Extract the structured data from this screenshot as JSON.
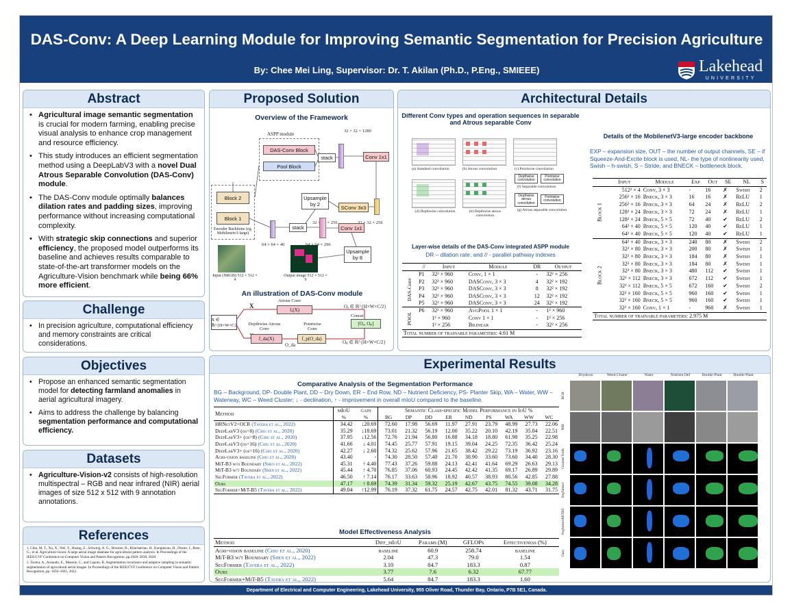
{
  "header": {
    "title": "DAS-Conv: A Deep Learning Module for Improving Semantic Segmentation for Precision Agriculture",
    "authors": "By: Chee Mei Ling, Supervisor: Dr. T. Akilan (Ph.D., P.Eng., SMIEEE)",
    "logo_name": "Lakehead",
    "logo_sub": "UNIVERSITY"
  },
  "abstract": {
    "heading": "Abstract",
    "b1_strong": "Agricultural image semantic segmentation",
    "b1_rest": " is crucial for modern farming, enabling precise visual analysis to enhance crop management and resource efficiency.",
    "b2_pre": "This study introduces an efficient segmentation method using a DeepLabV3 with a ",
    "b2_strong": "novel Dual Atrous Separable Convolution (DAS-Conv) module",
    "b2_post": ".",
    "b3_pre": "The DAS-Conv module optimally ",
    "b3_strong": "balances dilation rates and padding sizes",
    "b3_post": ", improving performance without increasing computational complexity.",
    "b4_pre": "With ",
    "b4_strong1": "strategic skip connections",
    "b4_mid1": " and superior ",
    "b4_strong2": "efficiency",
    "b4_mid2": ", the proposed model outperforms its baseline and achieves results comparable to state-of-the-art transformer models on the Agriculture-Vision benchmark while ",
    "b4_strong3": "being 66% more efficient",
    "b4_post": "."
  },
  "challenge": {
    "heading": "Challenge",
    "b1": "In precision agriculture, computational efficiency and memory constraints are critical considerations."
  },
  "objectives": {
    "heading": "Objectives",
    "b1_pre": "Propose an enhanced semantic segmentation model for ",
    "b1_strong": "detecting farmland anomalies",
    "b1_post": " in aerial agricultural imagery.",
    "b2_pre": "Aims to address the challenge by balancing ",
    "b2_strong": "segmentation performance and computational efficiency.",
    "b2_post": ""
  },
  "datasets": {
    "heading": "Datasets",
    "b1_strong": "Agriculture-Vision-v2",
    "b1_rest": " consists of high-resolution multispectral – RGB and near infrared (NIR) aerial images of size 512 x 512 with 9 annotation annotations."
  },
  "references": {
    "heading": "References",
    "r1": "1. Chiu, M. T., Xu, X., Wei, Y., Huang, Z., Schwing, A. G., Brunner, R., Khachatrian, H., Karapetyan, H., Dozier, I., Rose, G., et al. Agriculture-vision: A large aerial image database for agricultural pattern analysis. In Proceedings of the IEEE/CVF Conference on Computer Vision and Pattern Recognition, pp.2828–2838, 2020.",
    "r2": "2. Tavera, A., Arnaudo, E., Masone, C., and Caputo, B. Augmentation invariance and adaptive sampling in semantic segmentation of agricultural aerial images. In Proceedings of the IEEE/CVF Conference on Computer Vision and Pattern Recognition, pp. 1656–1665, 2022."
  },
  "proposed": {
    "heading": "Proposed Solution",
    "overview": "Overview of the Framework",
    "aspp": "ASPP module",
    "dasblock": "DAS-Conv Block",
    "poolblock": "Pool Block",
    "stack": "stack",
    "conv1": "Conv 1x1",
    "sconv": "SConv 3x3",
    "up2": "Upsample by 2",
    "up8": "Upsample by 8",
    "block2": "Block 2",
    "block1": "Block 1",
    "encoder": "Encoder Backbone (eg. Mobilenetv3-large)",
    "d1": "32 × 32 × 1280",
    "d2": "32 × 32 × 256",
    "d3": "32 × 32 × 256",
    "d4": "64 × 64 × 40",
    "d5": "64 × 64 × 296",
    "input": "Input (NRGB) 512 × 512 × 4",
    "output": "Output image 512 × 512 × 9",
    "illus": "An illustration of DAS-Conv module",
    "x": "X",
    "xin": "X ∈ ℝ^{H×W×C}",
    "atrous": "Atrous Conv",
    "fa": "fₐ(X)",
    "oa": "Oₐ ∈ ℝ^{H×W×C/2}",
    "concat": "Concat",
    "cat": "[Oₐ, Oₚ]",
    "dwa": "Depthwise Atrous Conv",
    "pw": "Pointwise Conv",
    "fda": "f_da(X)",
    "oda": "O_da",
    "fp": "f_p(O_da)",
    "op": "Oₚ ∈ ℝ^{H×W×C/2}"
  },
  "arch": {
    "heading": "Architectural Details",
    "convtypes": "Different Conv types and operation sequences in separable and Atrous separable Conv",
    "conv_a": "(a) Standard convolution",
    "conv_b": "(b) Atrous convolution",
    "conv_c": "(c) Pointwise convolution",
    "conv_d": "(d) Depthwise convolution",
    "conv_e": "(e) Depthwise atrous convolution",
    "conv_f": "(f) Separable convolution",
    "conv_g": "(g) Atrous separable convolution",
    "dw": "Depthwise convolution",
    "pw": "Pointwise convolution",
    "dwa": "Depthwise atrous convolution",
    "layerwise": "Layer-wise details of the DAS-Conv integrated ASPP module",
    "layerwise_note": "DR – dilation rate, and // - parallel pathway indexes",
    "aspp_cols": [
      "//",
      "Input",
      "Module",
      "DR",
      "Output"
    ],
    "aspp_group1": "DAS-Conv",
    "aspp_group2": "POOL",
    "aspp_rows": [
      [
        "P1",
        "32² × 960",
        "Conv, 1 × 1",
        "-",
        "32² × 256"
      ],
      [
        "P2",
        "32² × 960",
        "DASConv, 3 × 3",
        "4",
        "32² × 192"
      ],
      [
        "P3",
        "32² × 960",
        "DASConv, 3 × 3",
        "8",
        "32² × 192"
      ],
      [
        "P4",
        "32² × 960",
        "DASConv, 3 × 3",
        "12",
        "32² × 192"
      ],
      [
        "P5",
        "32² × 960",
        "DASConv, 3 × 3",
        "24",
        "32² × 192"
      ],
      [
        "P6",
        "32² × 960",
        "AvgPool 1 × 1",
        "-",
        "1² × 960"
      ],
      [
        "",
        "1² × 960",
        "Conv 1 × 1",
        "-",
        "1² × 256"
      ],
      [
        "",
        "1² × 256",
        "Bilinear",
        "-",
        "32² × 256"
      ]
    ],
    "aspp_total": "Total number of trainable parameters: 4.61 M",
    "mnv_title": "Details of the MobilenetV3-large encoder backbone",
    "mnv_note": "EXP – expansion size, OUT – the number of output channels, SE – if Squeeze-And-Excite block is used, NL- the type of nonlinearity used, Swish – h-swish, S – Stride, and BNECK – bottleneck block.",
    "mnv_cols": [
      "Input",
      "Module",
      "Exp",
      "Out",
      "SE",
      "NL",
      "S"
    ],
    "block1_label": "Block 1",
    "block2_label": "Block 2",
    "mnv_b1": [
      [
        "512² × 4",
        "Conv, 3 × 3",
        "-",
        "16",
        "✗",
        "Swish",
        "2"
      ],
      [
        "256² × 16",
        "Bneck, 3 × 3",
        "16",
        "16",
        "✗",
        "ReLU",
        "1"
      ],
      [
        "256² × 16",
        "Bneck, 3 × 3",
        "64",
        "24",
        "✗",
        "ReLU",
        "2"
      ],
      [
        "128² × 24",
        "Bneck, 3 × 3",
        "72",
        "24",
        "✗",
        "ReLU",
        "1"
      ],
      [
        "128² × 24",
        "Bneck, 5 × 5",
        "72",
        "40",
        "✔",
        "ReLU",
        "2"
      ],
      [
        "64² × 40",
        "Bneck, 5 × 5",
        "120",
        "40",
        "✔",
        "ReLU",
        "1"
      ],
      [
        "64² × 40",
        "Bneck, 5 × 5",
        "120",
        "40",
        "✔",
        "ReLU",
        "1"
      ]
    ],
    "mnv_b2": [
      [
        "64² × 40",
        "Bneck, 3 × 3",
        "240",
        "80",
        "✗",
        "Swish",
        "2"
      ],
      [
        "32² × 80",
        "Bneck, 3 × 3",
        "200",
        "80",
        "✗",
        "Swish",
        "1"
      ],
      [
        "32² × 80",
        "Bneck, 3 × 3",
        "184",
        "80",
        "✗",
        "Swish",
        "1"
      ],
      [
        "32² × 80",
        "Bneck, 3 × 3",
        "184",
        "80",
        "✗",
        "Swish",
        "1"
      ],
      [
        "32² × 80",
        "Bneck, 3 × 3",
        "480",
        "112",
        "✔",
        "Swish",
        "1"
      ],
      [
        "32² × 112",
        "Bneck, 3 × 3",
        "672",
        "112",
        "✔",
        "Swish",
        "1"
      ],
      [
        "32² × 112",
        "Bneck, 5 × 5",
        "672",
        "160",
        "✔",
        "Swish",
        "2"
      ],
      [
        "32² × 160",
        "Bneck, 5 × 5",
        "960",
        "160",
        "✔",
        "Swish",
        "1"
      ],
      [
        "32² × 160",
        "Bneck, 5 × 5",
        "960",
        "160",
        "✔",
        "Swish",
        "1"
      ],
      [
        "32² × 160",
        "Conv, 1 × 1",
        "-",
        "960",
        "✗",
        "Swish",
        "1"
      ]
    ],
    "mnv_total": "Total number of trainable parameters: 2.975 M"
  },
  "results": {
    "heading": "Experimental Results",
    "comp_title": "Comparative Analysis of the Segmentation Performance",
    "comp_note": "BG – Background, DP- Double Plant, DD – Dry Down, ER – End Row, ND – Nutrient Deficiency, PS- Planter Skip, WA – Water, WW – Waterway, WC – Weed Cluster; ↓ - declination, ↑ - improvement in overall mIoU compared to the baseline.",
    "comp_h1": [
      "Method",
      "mIoU",
      "gain",
      "Semantic Class-specific Model Performance in IoU %"
    ],
    "comp_h2": [
      "%",
      "%",
      "BG",
      "DP",
      "DD",
      "ER",
      "ND",
      "PS",
      "WA",
      "WW",
      "WC"
    ],
    "comp_rows": [
      {
        "m": "HRNetV2+OCR",
        "c": "(Tavera et al., 2022)",
        "v": [
          "34.42",
          "↓20.69",
          "72.60",
          "17.98",
          "56.69",
          "11.97",
          "27.91",
          "23.79",
          "48.99",
          "27.73",
          "22.06"
        ]
      },
      {
        "m": "DeepLabV3 (os=8)",
        "c": "(Chiu et al., 2020)",
        "v": [
          "35.29",
          "↓18.69",
          "73.01",
          "21.32",
          "56.19",
          "12.00",
          "35.22",
          "20.10",
          "42.19",
          "35.04",
          "22.51"
        ]
      },
      {
        "m": "DeepLabV3+ (os=8)",
        "c": "(Chiu et al., 2020)",
        "v": [
          "37.95",
          "↓12.56",
          "72.76",
          "21.94",
          "56.80",
          "16.88",
          "34.18",
          "18.80",
          "61.98",
          "35.25",
          "22.98"
        ]
      },
      {
        "m": "DeepLabV3 (os=16)",
        "c": "(Chiu et al., 2020)",
        "v": [
          "41.66",
          "↓ 4.01",
          "74.45",
          "25.77",
          "57.91",
          "19.15",
          "39.04",
          "24.25",
          "72.35",
          "36.42",
          "25.24"
        ]
      },
      {
        "m": "DeepLabV3+ (os=16)",
        "c": "(Chiu et al., 2020)",
        "v": [
          "42.27",
          "↓ 2.60",
          "74.32",
          "25.62",
          "57.96",
          "21.65",
          "38.42",
          "29.22",
          "73.19",
          "36.92",
          "23.16"
        ]
      },
      {
        "m": "Agri-vision baseline",
        "c": "(Chiu et al., 2020)",
        "v": [
          "43.40",
          "-",
          "74.30",
          "28.50",
          "57.40",
          "21.70",
          "38.90",
          "33.60",
          "73.60",
          "34.40",
          "28.30"
        ]
      },
      {
        "m": "MiT-B3 w/o Boundary",
        "c": "(Shen et al., 2022)",
        "v": [
          "45.31",
          "↑ 4.40",
          "77.43",
          "37.26",
          "59.88",
          "24.13",
          "42.41",
          "41.64",
          "69.29",
          "26.63",
          "29.13"
        ]
      },
      {
        "m": "MiT-B3 w/t Boundary",
        "c": "(Shen et al., 2022)",
        "v": [
          "45.44",
          "↑ 4.70",
          "76.85",
          "37.06",
          "60.93",
          "24.45",
          "42.42",
          "41.35",
          "69.17",
          "26.89",
          "29.89"
        ]
      },
      {
        "m": "SegFormer",
        "c": "(Tavera et al., 2022)",
        "v": [
          "46.50",
          "↑ 7.14",
          "76.17",
          "33.63",
          "58.96",
          "18.92",
          "40.57",
          "38.93",
          "80.56",
          "42.85",
          "27.88"
        ]
      },
      {
        "m": "Ours",
        "c": "",
        "v": [
          "47.17",
          "↑ 8.69",
          "74.39",
          "31.34",
          "59.32",
          "25.19",
          "42.67",
          "43.75",
          "74.55",
          "39.08",
          "34.28"
        ],
        "hl": true
      },
      {
        "m": "SegFormer+MiT-B5",
        "c": "(Tavera et al., 2022)",
        "v": [
          "49.04",
          "↑12.99",
          "76.19",
          "37.32",
          "61.75",
          "24.57",
          "42.75",
          "42.01",
          "81.32",
          "43.71",
          "31.75"
        ]
      }
    ],
    "eff_title": "Model Effectiveness Analysis",
    "eff_cols": [
      "Method",
      "Diff_mIoU",
      "Params (M)",
      "GFLOPs",
      "Effectiveness (%)"
    ],
    "eff_rows": [
      {
        "m": "Agri-vision baseline",
        "c": "(Chiu et al., 2020)",
        "v": [
          "baseline",
          "60.9",
          "258.74",
          "baseline"
        ]
      },
      {
        "m": "MiT-B3 w/t Boundary",
        "c": "(Shen et al., 2022)",
        "v": [
          "2.04",
          "47.3",
          "79.0",
          "1.54"
        ]
      },
      {
        "m": "SegFormer",
        "c": "(Tavera et al., 2022)",
        "v": [
          "3.10",
          "84.7",
          "183.3",
          "0.87"
        ]
      },
      {
        "m": "Ours",
        "c": "",
        "v": [
          "3.77",
          "7.6",
          "6.32",
          "67.77"
        ],
        "hl": true
      },
      {
        "m": "SegFormer+MiT-B5",
        "c": "(Tavera et al., 2022)",
        "v": [
          "5.64",
          "84.7",
          "183.3",
          "1.60"
        ]
      }
    ],
    "grid_cols": [
      "Drydown",
      "Weed Cluster",
      "Water",
      "Nutrient Def",
      "Double Plant",
      "Double Plant"
    ],
    "grid_rows": [
      "RGB",
      "NIR",
      "Ground Truth",
      "Segformer",
      "SegformerMiTB5",
      "Ours"
    ]
  },
  "footer": "Department of Electrical and Computer Engineering, Lakehead University, 955 Oliver Road, Thunder Bay, Ontario, P7B 5E1, Canada.",
  "colors": {
    "navy": "#17407c",
    "section_bg": "#dbe7f4",
    "highlight": "#c9f0b8",
    "citation": "#2458a6"
  }
}
